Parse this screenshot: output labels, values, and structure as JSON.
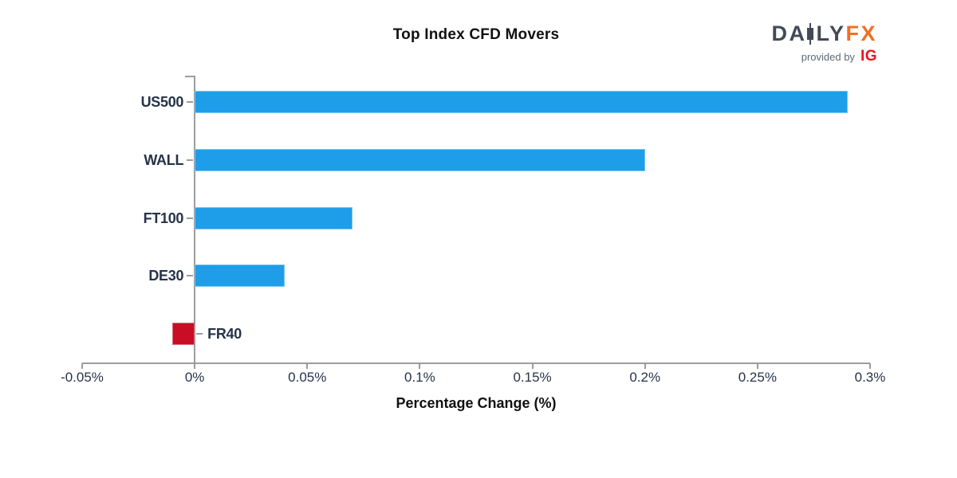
{
  "branding": {
    "wordmark_left": "DA",
    "wordmark_mid": "LY",
    "wordmark_accent": "FX",
    "provided_by": "provided by",
    "partner": "IG",
    "colors": {
      "wordmark_slate": "#414B57",
      "wordmark_orange": "#F36F21",
      "partner_red": "#E8131D",
      "provided_gray": "#5E6977"
    }
  },
  "chart_data": {
    "type": "bar",
    "orientation": "horizontal",
    "title": "Top Index CFD Movers",
    "xlabel": "Percentage Change (%)",
    "categories": [
      "US500",
      "WALL",
      "FT100",
      "DE30",
      "FR40"
    ],
    "values": [
      0.29,
      0.2,
      0.07,
      0.04,
      -0.01
    ],
    "xlim": [
      -0.05,
      0.3
    ],
    "xticks": [
      {
        "value": -0.05,
        "label": "-0.05%"
      },
      {
        "value": 0,
        "label": "0%"
      },
      {
        "value": 0.05,
        "label": "0.05%"
      },
      {
        "value": 0.1,
        "label": "0.1%"
      },
      {
        "value": 0.15,
        "label": "0.15%"
      },
      {
        "value": 0.2,
        "label": "0.2%"
      },
      {
        "value": 0.25,
        "label": "0.25%"
      },
      {
        "value": 0.3,
        "label": "0.3%"
      }
    ],
    "colors": {
      "positive_bar": "#1E9EE8",
      "negative_bar": "#C90D24",
      "axis": "#9C9C9C",
      "label": "#263349"
    },
    "grid": false,
    "legend": null
  }
}
